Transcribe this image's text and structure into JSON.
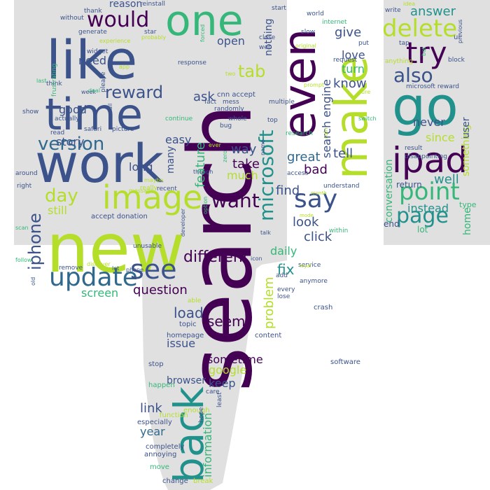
{
  "palette": {
    "background": "#ffffff",
    "shape_fill": "#e0e0e0",
    "purple": "#440154",
    "indigo": "#3b528b",
    "slate": "#31688e",
    "teal": "#21918c",
    "green": "#35b779",
    "lime": "#b5de2b",
    "yellow": "#fde725"
  },
  "words": [
    {
      "text": "search",
      "color": "purple"
    },
    {
      "text": "new",
      "color": "lime"
    },
    {
      "text": "work",
      "color": "indigo"
    },
    {
      "text": "like",
      "color": "indigo"
    },
    {
      "text": "time",
      "color": "indigo"
    },
    {
      "text": "back",
      "color": "teal"
    },
    {
      "text": "one",
      "color": "green"
    },
    {
      "text": "even",
      "color": "purple"
    },
    {
      "text": "make",
      "color": "lime"
    },
    {
      "text": "go",
      "color": "teal"
    },
    {
      "text": "ipad",
      "color": "purple"
    },
    {
      "text": "image",
      "color": "lime"
    },
    {
      "text": "microsoft",
      "color": "teal"
    },
    {
      "text": "update",
      "color": "slate"
    },
    {
      "text": "see",
      "color": "indigo"
    },
    {
      "text": "version",
      "color": "slate"
    },
    {
      "text": "try",
      "color": "purple"
    },
    {
      "text": "delete",
      "color": "lime"
    },
    {
      "text": "point",
      "color": "green"
    },
    {
      "text": "page",
      "color": "teal"
    },
    {
      "text": "would",
      "color": "purple"
    },
    {
      "text": "reward",
      "color": "indigo"
    },
    {
      "text": "also",
      "color": "indigo"
    },
    {
      "text": "tab",
      "color": "lime"
    },
    {
      "text": "say",
      "color": "indigo"
    },
    {
      "text": "want",
      "color": "purple"
    },
    {
      "text": "day",
      "color": "lime"
    },
    {
      "text": "iphone",
      "color": "indigo"
    },
    {
      "text": "question",
      "color": "purple"
    },
    {
      "text": "different",
      "color": "purple"
    },
    {
      "text": "problem",
      "color": "lime"
    },
    {
      "text": "search engine",
      "color": "indigo"
    },
    {
      "text": "load",
      "color": "indigo"
    },
    {
      "text": "seem",
      "color": "purple"
    },
    {
      "text": "information",
      "color": "green"
    },
    {
      "text": "link",
      "color": "indigo"
    },
    {
      "text": "year",
      "color": "slate"
    },
    {
      "text": "answer",
      "color": "teal"
    },
    {
      "text": "since",
      "color": "lime"
    },
    {
      "text": "never",
      "color": "indigo"
    },
    {
      "text": "well",
      "color": "teal"
    },
    {
      "text": "instead",
      "color": "teal"
    },
    {
      "text": "conversation",
      "color": "green"
    },
    {
      "text": "something",
      "color": "lime"
    },
    {
      "text": "user",
      "color": "indigo"
    },
    {
      "text": "home",
      "color": "green"
    },
    {
      "text": "return",
      "color": "indigo"
    },
    {
      "text": "end",
      "color": "indigo"
    },
    {
      "text": "lot",
      "color": "green"
    },
    {
      "text": "type",
      "color": "green"
    },
    {
      "text": "bad",
      "color": "purple"
    },
    {
      "text": "great",
      "color": "slate"
    },
    {
      "text": "tell",
      "color": "indigo"
    },
    {
      "text": "find",
      "color": "indigo"
    },
    {
      "text": "look",
      "color": "indigo"
    },
    {
      "text": "click",
      "color": "indigo"
    },
    {
      "text": "daily",
      "color": "green"
    },
    {
      "text": "fix",
      "color": "teal"
    },
    {
      "text": "give",
      "color": "indigo"
    },
    {
      "text": "love",
      "color": "indigo"
    },
    {
      "text": "turn",
      "color": "green"
    },
    {
      "text": "know",
      "color": "indigo"
    },
    {
      "text": "nothing",
      "color": "indigo"
    },
    {
      "text": "open",
      "color": "indigo"
    },
    {
      "text": "ask",
      "color": "indigo"
    },
    {
      "text": "feature",
      "color": "green"
    },
    {
      "text": "easy",
      "color": "indigo"
    },
    {
      "text": "way",
      "color": "indigo"
    },
    {
      "text": "take",
      "color": "purple"
    },
    {
      "text": "much",
      "color": "lime"
    },
    {
      "text": "good",
      "color": "indigo"
    },
    {
      "text": "story",
      "color": "indigo"
    },
    {
      "text": "need",
      "color": "indigo"
    },
    {
      "text": "still",
      "color": "lime"
    },
    {
      "text": "long",
      "color": "indigo"
    },
    {
      "text": "many",
      "color": "indigo"
    },
    {
      "text": "screen",
      "color": "green"
    },
    {
      "text": "issue",
      "color": "indigo"
    },
    {
      "text": "sometime",
      "color": "purple"
    },
    {
      "text": "google",
      "color": "lime"
    },
    {
      "text": "keep",
      "color": "indigo"
    },
    {
      "text": "browser",
      "color": "indigo"
    },
    {
      "text": "reason",
      "color": "indigo"
    },
    {
      "text": "cnn accept",
      "color": "indigo"
    },
    {
      "text": "accept donation",
      "color": "indigo"
    },
    {
      "text": "software",
      "color": "indigo"
    },
    {
      "text": "crash",
      "color": "indigo"
    },
    {
      "text": "mess",
      "color": "indigo"
    },
    {
      "text": "randomly",
      "color": "indigo"
    },
    {
      "text": "fact",
      "color": "indigo"
    },
    {
      "text": "whole",
      "color": "indigo"
    },
    {
      "text": "bug",
      "color": "indigo"
    },
    {
      "text": "continue",
      "color": "green"
    },
    {
      "text": "multiple",
      "color": "indigo"
    },
    {
      "text": "topic",
      "color": "indigo"
    },
    {
      "text": "homepage",
      "color": "indigo"
    },
    {
      "text": "content",
      "color": "indigo"
    },
    {
      "text": "stop",
      "color": "indigo"
    },
    {
      "text": "happen",
      "color": "green"
    },
    {
      "text": "completely",
      "color": "indigo"
    },
    {
      "text": "annoying",
      "color": "indigo"
    },
    {
      "text": "move",
      "color": "green"
    },
    {
      "text": "change",
      "color": "indigo"
    },
    {
      "text": "break",
      "color": "lime"
    },
    {
      "text": "especially",
      "color": "indigo"
    },
    {
      "text": "function",
      "color": "lime"
    },
    {
      "text": "enough",
      "color": "lime"
    },
    {
      "text": "care",
      "color": "indigo"
    },
    {
      "text": "least",
      "color": "indigo"
    },
    {
      "text": "hope",
      "color": "indigo"
    },
    {
      "text": "able",
      "color": "lime"
    },
    {
      "text": "every",
      "color": "indigo"
    },
    {
      "text": "lose",
      "color": "indigo"
    },
    {
      "text": "anymore",
      "color": "indigo"
    },
    {
      "text": "add",
      "color": "indigo"
    },
    {
      "text": "service",
      "color": "indigo"
    },
    {
      "text": "within",
      "color": "green"
    },
    {
      "text": "talk",
      "color": "indigo"
    },
    {
      "text": "remove",
      "color": "indigo"
    },
    {
      "text": "unusable",
      "color": "indigo"
    },
    {
      "text": "recent",
      "color": "indigo"
    },
    {
      "text": "really",
      "color": "lime"
    },
    {
      "text": "maybe",
      "color": "lime"
    },
    {
      "text": "message",
      "color": "lime"
    },
    {
      "text": "option",
      "color": "green"
    },
    {
      "text": "developer",
      "color": "indigo"
    },
    {
      "text": "icon",
      "color": "indigo"
    },
    {
      "text": "though",
      "color": "indigo"
    },
    {
      "text": "zero",
      "color": "green"
    },
    {
      "text": "name",
      "color": "indigo"
    },
    {
      "text": "ever",
      "color": "lime"
    },
    {
      "text": "research",
      "color": "green"
    },
    {
      "text": "top",
      "color": "indigo"
    },
    {
      "text": "safari",
      "color": "indigo"
    },
    {
      "text": "picture",
      "color": "indigo"
    },
    {
      "text": "read",
      "color": "indigo"
    },
    {
      "text": "actually",
      "color": "indigo"
    },
    {
      "text": "show",
      "color": "indigo"
    },
    {
      "text": "think",
      "color": "indigo"
    },
    {
      "text": "last",
      "color": "green"
    },
    {
      "text": "week",
      "color": "indigo"
    },
    {
      "text": "deal",
      "color": "green"
    },
    {
      "text": "fail",
      "color": "indigo"
    },
    {
      "text": "around",
      "color": "indigo"
    },
    {
      "text": "right",
      "color": "indigo"
    },
    {
      "text": "scan",
      "color": "green"
    },
    {
      "text": "follow",
      "color": "green"
    },
    {
      "text": "old",
      "color": "indigo"
    },
    {
      "text": "discover",
      "color": "lime"
    },
    {
      "text": "let",
      "color": "indigo"
    },
    {
      "text": "phone",
      "color": "indigo"
    },
    {
      "text": "please",
      "color": "indigo"
    },
    {
      "text": "widget",
      "color": "indigo"
    },
    {
      "text": "frustrating",
      "color": "green"
    },
    {
      "text": "generate",
      "color": "indigo"
    },
    {
      "text": "experience",
      "color": "lime"
    },
    {
      "text": "without",
      "color": "indigo"
    },
    {
      "text": "thank",
      "color": "indigo"
    },
    {
      "text": "reinstall",
      "color": "indigo"
    },
    {
      "text": "star",
      "color": "indigo"
    },
    {
      "text": "probably",
      "color": "lime"
    },
    {
      "text": "response",
      "color": "indigo"
    },
    {
      "text": "app",
      "color": "lime"
    },
    {
      "text": "two",
      "color": "lime"
    },
    {
      "text": "forced",
      "color": "green"
    },
    {
      "text": "start",
      "color": "indigo"
    },
    {
      "text": "close",
      "color": "indigo"
    },
    {
      "text": "web",
      "color": "indigo"
    },
    {
      "text": "world",
      "color": "indigo"
    },
    {
      "text": "internet",
      "color": "green"
    },
    {
      "text": "slow",
      "color": "indigo"
    },
    {
      "text": "original",
      "color": "lime"
    },
    {
      "text": "put",
      "color": "indigo"
    },
    {
      "text": "request",
      "color": "indigo"
    },
    {
      "text": "prompt",
      "color": "lime"
    },
    {
      "text": "switch",
      "color": "green"
    },
    {
      "text": "sure",
      "color": "lime"
    },
    {
      "text": "ruin",
      "color": "lime"
    },
    {
      "text": "access",
      "color": "indigo"
    },
    {
      "text": "understand",
      "color": "indigo"
    },
    {
      "text": "mode",
      "color": "lime"
    },
    {
      "text": "month",
      "color": "lime"
    },
    {
      "text": "loyal",
      "color": "lime"
    },
    {
      "text": "write",
      "color": "indigo"
    },
    {
      "text": "tap",
      "color": "indigo"
    },
    {
      "text": "anything",
      "color": "lime"
    },
    {
      "text": "bot",
      "color": "green"
    },
    {
      "text": "block",
      "color": "indigo"
    },
    {
      "text": "microsoft reward",
      "color": "indigo"
    },
    {
      "text": "previous",
      "color": "indigo"
    },
    {
      "text": "idea",
      "color": "lime"
    },
    {
      "text": "ui",
      "color": "indigo"
    },
    {
      "text": "result",
      "color": "indigo"
    },
    {
      "text": "disappointing",
      "color": "indigo"
    }
  ]
}
